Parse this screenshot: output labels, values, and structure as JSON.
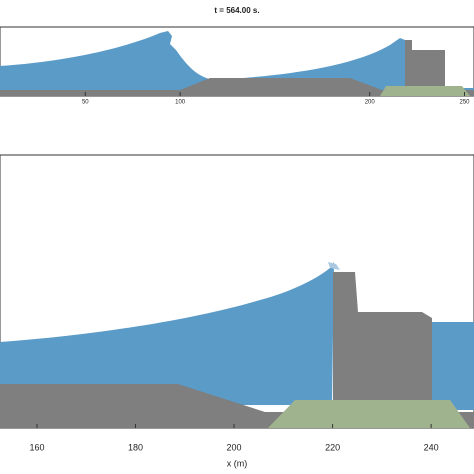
{
  "chart_data": [
    {
      "type": "field",
      "title": "t = 564.00 s.",
      "xlim": [
        5,
        255
      ],
      "xticks": [
        50,
        100,
        200,
        250
      ]
    },
    {
      "type": "field",
      "xlabel": "x (m)",
      "xlim": [
        152.5,
        248.7
      ],
      "xticks": [
        160,
        180,
        200,
        220,
        240
      ]
    }
  ]
}
